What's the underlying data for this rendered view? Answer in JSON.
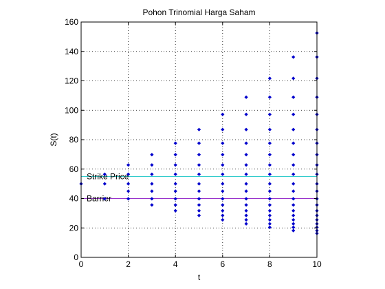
{
  "chart_data": {
    "type": "scatter",
    "title": "Pohon Trinomial Harga Saham",
    "xlabel": "t",
    "ylabel": "S(t)",
    "xlim": [
      0,
      10
    ],
    "ylim": [
      0,
      160
    ],
    "xticks": [
      0,
      2,
      4,
      6,
      8,
      10
    ],
    "yticks": [
      0,
      20,
      40,
      60,
      80,
      100,
      120,
      140,
      160
    ],
    "grid": "dotted",
    "marker_color": "#0000cc",
    "points_by_t": [
      {
        "t": 0,
        "s": [
          50
        ]
      },
      {
        "t": 1,
        "s": [
          39.8,
          50,
          56.5
        ]
      },
      {
        "t": 2,
        "s": [
          39.8,
          45,
          50,
          56.5,
          62.8
        ]
      },
      {
        "t": 3,
        "s": [
          35.6,
          39.8,
          45,
          50,
          56.5,
          62.8,
          69.8
        ]
      },
      {
        "t": 4,
        "s": [
          31.7,
          35.6,
          39.8,
          45,
          50,
          56.5,
          62.8,
          69.8,
          77.6
        ]
      },
      {
        "t": 5,
        "s": [
          28.5,
          31.7,
          35.6,
          39.8,
          45,
          50,
          56.5,
          62.8,
          69.8,
          77.6,
          86.9
        ]
      },
      {
        "t": 6,
        "s": [
          25.5,
          28.5,
          31.7,
          35.6,
          39.8,
          45,
          50,
          56.5,
          62.8,
          69.8,
          77.6,
          86.9,
          97.2
        ]
      },
      {
        "t": 7,
        "s": [
          22.8,
          25.5,
          28.5,
          31.7,
          35.6,
          39.8,
          45,
          50,
          56.5,
          62.8,
          69.8,
          77.6,
          86.9,
          97.2,
          108.9
        ]
      },
      {
        "t": 8,
        "s": [
          20.4,
          22.8,
          25.5,
          28.5,
          31.7,
          35.6,
          39.8,
          45,
          50,
          56.5,
          62.8,
          69.8,
          77.6,
          86.9,
          97.2,
          108.9,
          121.7
        ]
      },
      {
        "t": 9,
        "s": [
          18.2,
          20.4,
          22.8,
          25.5,
          28.5,
          31.7,
          35.6,
          39.8,
          45,
          50,
          56.5,
          62.8,
          69.8,
          77.6,
          86.9,
          97.2,
          108.9,
          121.7,
          136.2
        ]
      },
      {
        "t": 10,
        "s": [
          16.3,
          18.2,
          20.4,
          22.8,
          25.5,
          28.5,
          31.7,
          35.6,
          39.8,
          45,
          50,
          56.5,
          62.8,
          69.8,
          77.6,
          86.9,
          97.2,
          108.9,
          121.7,
          136.2,
          152.5
        ]
      }
    ],
    "reference_lines": [
      {
        "label": "Strike Price",
        "y": 55,
        "color": "#33cccc"
      },
      {
        "label": "Barrier",
        "y": 40,
        "color": "#9933cc"
      }
    ]
  }
}
